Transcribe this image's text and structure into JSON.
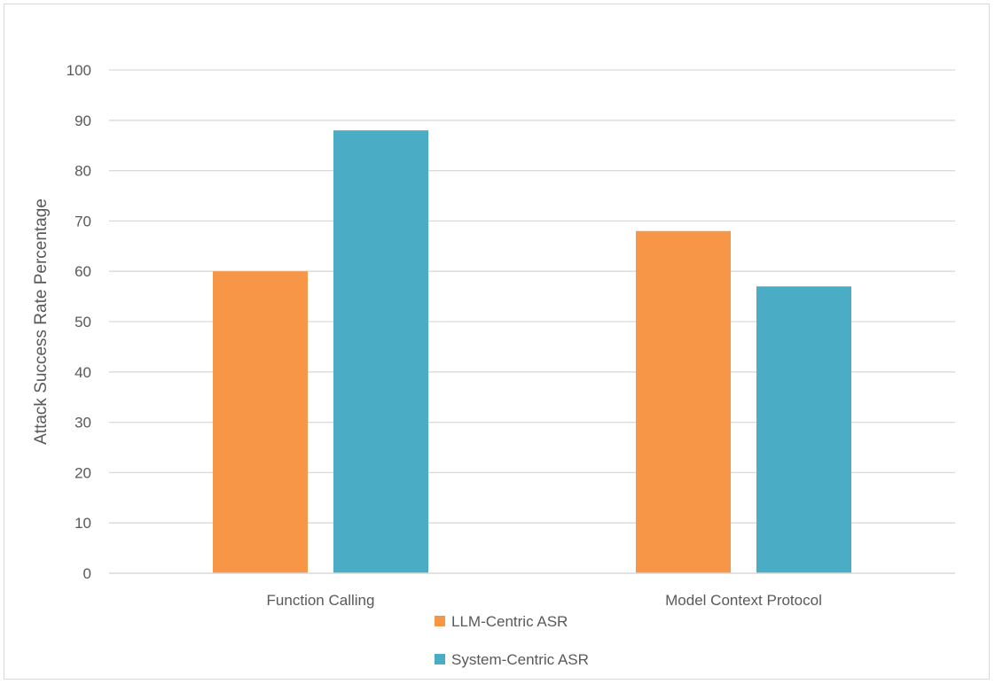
{
  "chart_data": {
    "type": "bar",
    "title": "",
    "xlabel": "",
    "ylabel": "Attack Success Rate Percentage",
    "categories": [
      "Function Calling",
      "Model Context Protocol"
    ],
    "series": [
      {
        "name": "LLM-Centric ASR",
        "values": [
          60,
          68
        ],
        "color": "#f79646"
      },
      {
        "name": "System-Centric ASR",
        "values": [
          88,
          57
        ],
        "color": "#4bacc6"
      }
    ],
    "ylim": [
      0,
      100
    ],
    "yticks": [
      0,
      10,
      20,
      30,
      40,
      50,
      60,
      70,
      80,
      90,
      100
    ],
    "grid": true,
    "gridColor": "#d9d9d9",
    "legend_position": "bottom"
  }
}
